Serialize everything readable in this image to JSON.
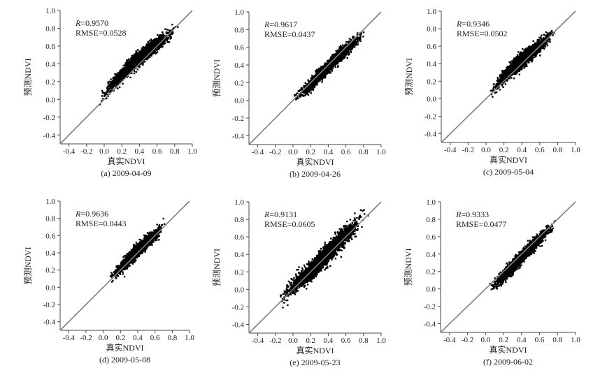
{
  "chart_data": [
    {
      "type": "scatter",
      "panel": "(a) 2009-04-09",
      "stats": {
        "r_label": "R",
        "r_value": "=0.9570",
        "rmse": "RMSE=0.0528"
      },
      "xlabel": "真实NDVI",
      "ylabel": "预测NDVI",
      "xlim": [
        -0.5,
        1.0
      ],
      "ylim": [
        -0.5,
        1.0
      ],
      "xticks": [
        "-0.4",
        "-0.2",
        "0.0",
        "0.2",
        "0.4",
        "0.6",
        "0.8",
        "1.0"
      ],
      "yticks": [
        "-0.4",
        "-0.2",
        "0.0",
        "0.2",
        "0.4",
        "0.6",
        "0.8",
        "1.0"
      ],
      "reference_line": "1:1",
      "cloud": {
        "x_range": [
          -0.08,
          0.85
        ],
        "center": [
          [
            -0.05,
            -0.02
          ],
          [
            0.1,
            0.18
          ],
          [
            0.3,
            0.38
          ],
          [
            0.5,
            0.55
          ],
          [
            0.7,
            0.7
          ],
          [
            0.82,
            0.78
          ]
        ],
        "spread": 0.07,
        "density": 1.0
      }
    },
    {
      "type": "scatter",
      "panel": "(b) 2009-04-26",
      "stats": {
        "r_label": "R",
        "r_value": "=0.9617",
        "rmse": "RMSE=0.0437"
      },
      "xlabel": "真实NDVI",
      "ylabel": "预测NDVI",
      "xlim": [
        -0.5,
        1.0
      ],
      "ylim": [
        -0.5,
        1.0
      ],
      "xticks": [
        "-0.4",
        "-0.2",
        "0.0",
        "0.2",
        "0.4",
        "0.6",
        "0.8",
        "1.0"
      ],
      "yticks": [
        "-0.4",
        "-0.2",
        "0.0",
        "0.2",
        "0.4",
        "0.6",
        "0.8",
        "1.0"
      ],
      "reference_line": "1:1",
      "cloud": {
        "x_range": [
          -0.02,
          0.85
        ],
        "center": [
          [
            0.0,
            0.02
          ],
          [
            0.15,
            0.12
          ],
          [
            0.3,
            0.28
          ],
          [
            0.5,
            0.48
          ],
          [
            0.7,
            0.66
          ],
          [
            0.84,
            0.78
          ]
        ],
        "spread": 0.06,
        "density": 1.0
      }
    },
    {
      "type": "scatter",
      "panel": "(c) 2009-05-04",
      "stats": {
        "r_label": "R",
        "r_value": "=0.9346",
        "rmse": "RMSE=0.0502"
      },
      "xlabel": "真实NDVI",
      "ylabel": "预测NDVI",
      "xlim": [
        -0.5,
        1.0
      ],
      "ylim": [
        -0.5,
        1.0
      ],
      "xticks": [
        "-0.4",
        "-0.2",
        "0.0",
        "0.2",
        "0.4",
        "0.6",
        "0.8",
        "1.0"
      ],
      "yticks": [
        "-0.4",
        "-0.2",
        "0.0",
        "0.2",
        "0.4",
        "0.6",
        "0.8",
        "1.0"
      ],
      "reference_line": "1:1",
      "cloud": {
        "x_range": [
          0.02,
          0.8
        ],
        "center": [
          [
            0.05,
            0.05
          ],
          [
            0.15,
            0.2
          ],
          [
            0.3,
            0.35
          ],
          [
            0.5,
            0.52
          ],
          [
            0.65,
            0.65
          ],
          [
            0.78,
            0.78
          ]
        ],
        "spread": 0.07,
        "density": 1.0
      }
    },
    {
      "type": "scatter",
      "panel": "(d) 2009-05-08",
      "stats": {
        "r_label": "R",
        "r_value": "=0.9636",
        "rmse": "RMSE=0.0443"
      },
      "xlabel": "真实NDVI",
      "ylabel": "预测NDVI",
      "xlim": [
        -0.5,
        1.0
      ],
      "ylim": [
        -0.5,
        1.0
      ],
      "xticks": [
        "-0.4",
        "-0.2",
        "0.0",
        "0.2",
        "0.4",
        "0.6",
        "0.8",
        "1.0"
      ],
      "yticks": [
        "-0.4",
        "-0.2",
        "0.0",
        "0.2",
        "0.4",
        "0.6",
        "0.8",
        "1.0"
      ],
      "reference_line": "1:1",
      "cloud": {
        "x_range": [
          0.05,
          0.73
        ],
        "center": [
          [
            0.05,
            0.1
          ],
          [
            0.2,
            0.22
          ],
          [
            0.35,
            0.38
          ],
          [
            0.5,
            0.52
          ],
          [
            0.62,
            0.62
          ],
          [
            0.73,
            0.76
          ]
        ],
        "spread": 0.06,
        "density": 1.0
      }
    },
    {
      "type": "scatter",
      "panel": "(e) 2009-05-23",
      "stats": {
        "r_label": "R",
        "r_value": "=0.9131",
        "rmse": "RMSE=0.0605"
      },
      "xlabel": "真实NDVI",
      "ylabel": "预测NDVI",
      "xlim": [
        -0.5,
        1.0
      ],
      "ylim": [
        -0.5,
        1.0
      ],
      "xticks": [
        "-0.4",
        "-0.2",
        "0.0",
        "0.2",
        "0.4",
        "0.6",
        "0.8",
        "1.0"
      ],
      "yticks": [
        "-0.4",
        "-0.2",
        "0.0",
        "0.2",
        "0.4",
        "0.6",
        "0.8",
        "1.0"
      ],
      "reference_line": "1:1",
      "cloud": {
        "x_range": [
          -0.2,
          0.88
        ],
        "center": [
          [
            -0.2,
            -0.2
          ],
          [
            0.05,
            0.08
          ],
          [
            0.2,
            0.2
          ],
          [
            0.4,
            0.42
          ],
          [
            0.6,
            0.62
          ],
          [
            0.75,
            0.78
          ],
          [
            0.86,
            0.9
          ]
        ],
        "spread": 0.09,
        "density": 1.2
      }
    },
    {
      "type": "scatter",
      "panel": "(f) 2009-06-02",
      "stats": {
        "r_label": "R",
        "r_value": "=0.9333",
        "rmse": "RMSE=0.0477"
      },
      "xlabel": "真实NDVI",
      "ylabel": "预测NDVI",
      "xlim": [
        -0.5,
        1.0
      ],
      "ylim": [
        -0.5,
        1.0
      ],
      "xticks": [
        "-0.4",
        "-0.2",
        "0.0",
        "0.2",
        "0.4",
        "0.6",
        "0.8",
        "1.0"
      ],
      "yticks": [
        "-0.4",
        "-0.2",
        "0.0",
        "0.2",
        "0.4",
        "0.6",
        "0.8",
        "1.0"
      ],
      "reference_line": "1:1",
      "cloud": {
        "x_range": [
          0.0,
          0.8
        ],
        "center": [
          [
            0.0,
            -0.05
          ],
          [
            0.15,
            0.1
          ],
          [
            0.3,
            0.25
          ],
          [
            0.45,
            0.42
          ],
          [
            0.6,
            0.57
          ],
          [
            0.78,
            0.76
          ]
        ],
        "spread": 0.06,
        "density": 1.0
      }
    }
  ],
  "colors": {
    "points": "#000000",
    "reference_line": "#808080",
    "axes": "#444444"
  }
}
